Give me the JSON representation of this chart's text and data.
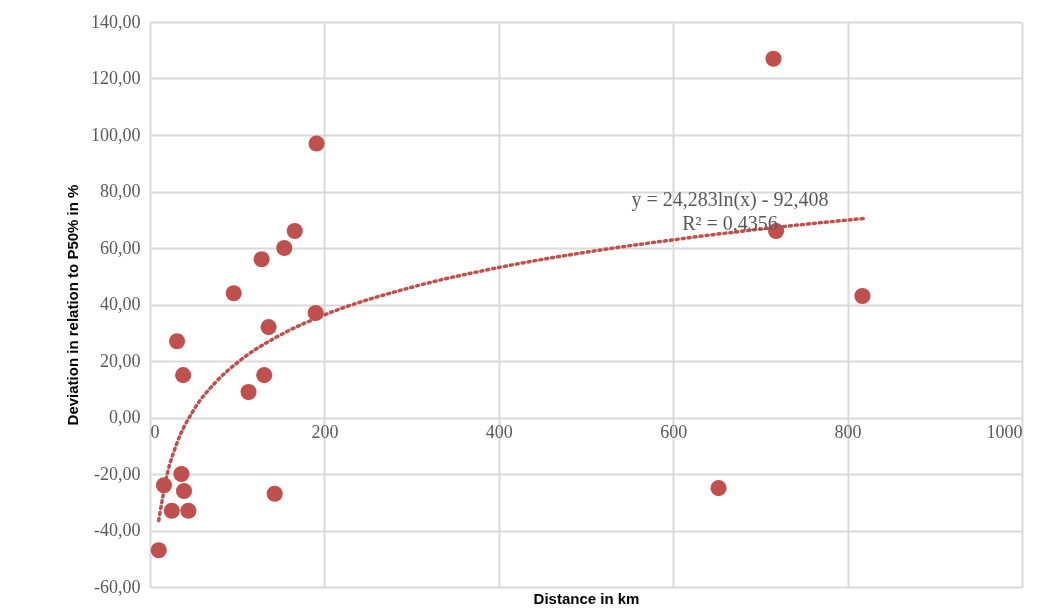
{
  "chart_data": {
    "type": "scatter",
    "xlabel": "Distance in km",
    "ylabel": "Deviation in relation to P50% in %",
    "series": [
      {
        "type": "scatter",
        "color": "#c0504d",
        "marker": "circle",
        "x": [
          715,
          191,
          166,
          154,
          128,
          96,
          190,
          136,
          31,
          38,
          131,
          113,
          718,
          817,
          36,
          16,
          39,
          143,
          25,
          44,
          10,
          652
        ],
        "values": [
          127,
          97,
          66,
          60,
          56,
          44,
          37,
          32,
          27,
          15,
          15,
          9,
          66,
          43,
          -20,
          -24,
          -26,
          -27,
          -33,
          -33,
          -47,
          -25
        ]
      },
      {
        "type": "line",
        "color": "#c0504d",
        "line_style": "dotted",
        "x": [
          10,
          20,
          30,
          50,
          75,
          100,
          150,
          200,
          300,
          400,
          500,
          600,
          700,
          820
        ],
        "values": [
          -36.5,
          -19.7,
          -9.8,
          2.6,
          12.4,
          19.4,
          29.3,
          36.3,
          46.1,
          53.1,
          58.5,
          62.9,
          66.7,
          70.5
        ]
      }
    ],
    "annotations": [
      "y = 24,283ln(x) - 92,408",
      "R² = 0,4356"
    ],
    "xlim": [
      0,
      1000
    ],
    "xticks": [
      0,
      200,
      400,
      600,
      800,
      1000
    ],
    "ylim": [
      -60,
      140
    ],
    "yticks": [
      {
        "value": -60,
        "label": "-60,00"
      },
      {
        "value": -40,
        "label": "-40,00"
      },
      {
        "value": -20,
        "label": "-20,00"
      },
      {
        "value": 0,
        "label": "0,00"
      },
      {
        "value": 20,
        "label": "20,00"
      },
      {
        "value": 40,
        "label": "40,00"
      },
      {
        "value": 60,
        "label": "60,00"
      },
      {
        "value": 80,
        "label": "80,00"
      },
      {
        "value": 100,
        "label": "100,00"
      },
      {
        "value": 120,
        "label": "120,00"
      },
      {
        "value": 140,
        "label": "140,00"
      }
    ],
    "grid": true,
    "legend": false
  }
}
